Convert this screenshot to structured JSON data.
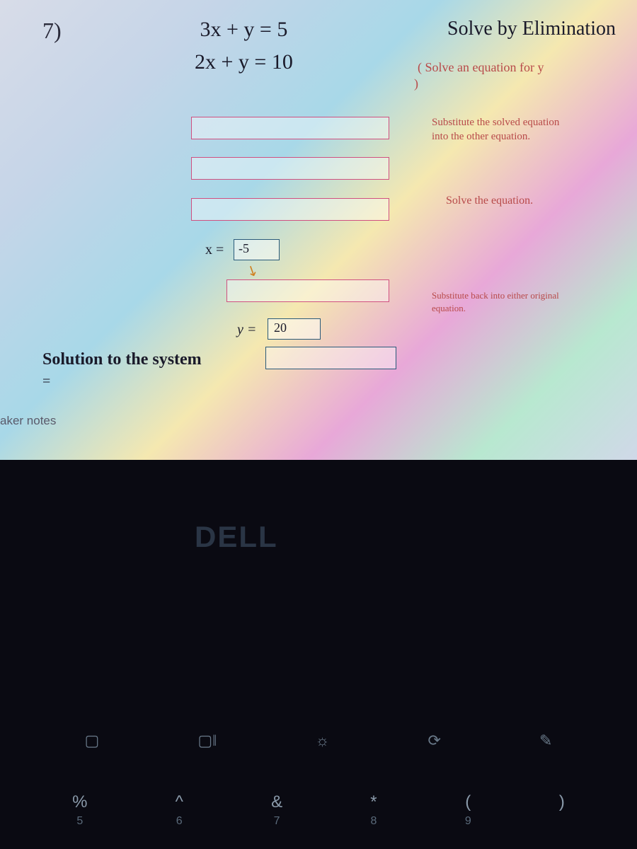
{
  "worksheet": {
    "problemNumber": "7)",
    "equation1": "3x + y = 5",
    "equation2": "2x + y = 10",
    "title": "Solve by Elimination",
    "hints": {
      "h1": "( Solve an equation for y",
      "h1b": ")",
      "h2": "Substitute the solved equation",
      "h2b": "into the other equation.",
      "h3": "Solve the equation.",
      "h4": "Substitute back into either original",
      "h4b": "equation."
    },
    "xLabel": "x =",
    "xValue": "-5",
    "yLabel": "y =",
    "yValue": "20",
    "solutionLabel": "Solution to the system",
    "equalsSign": "=",
    "speakerNotes": "aker notes"
  },
  "laptop": {
    "logo": "DELL",
    "funcIcons": [
      "▢",
      "▢‖",
      "☼",
      "⟳",
      "✎"
    ],
    "keys": [
      {
        "sym": "%",
        "sub": "5"
      },
      {
        "sym": "^",
        "sub": "6"
      },
      {
        "sym": "&",
        "sub": "7"
      },
      {
        "sym": "*",
        "sub": "8"
      },
      {
        "sym": "(",
        "sub": "9"
      },
      {
        "sym": ")",
        "sub": ""
      }
    ]
  },
  "colors": {
    "hintColor": "#b84a4a",
    "inputBorder": "#d05080",
    "boxBorder": "#2a5a7a",
    "textColor": "#1a1a2a",
    "darkBg": "#0a0a12"
  }
}
